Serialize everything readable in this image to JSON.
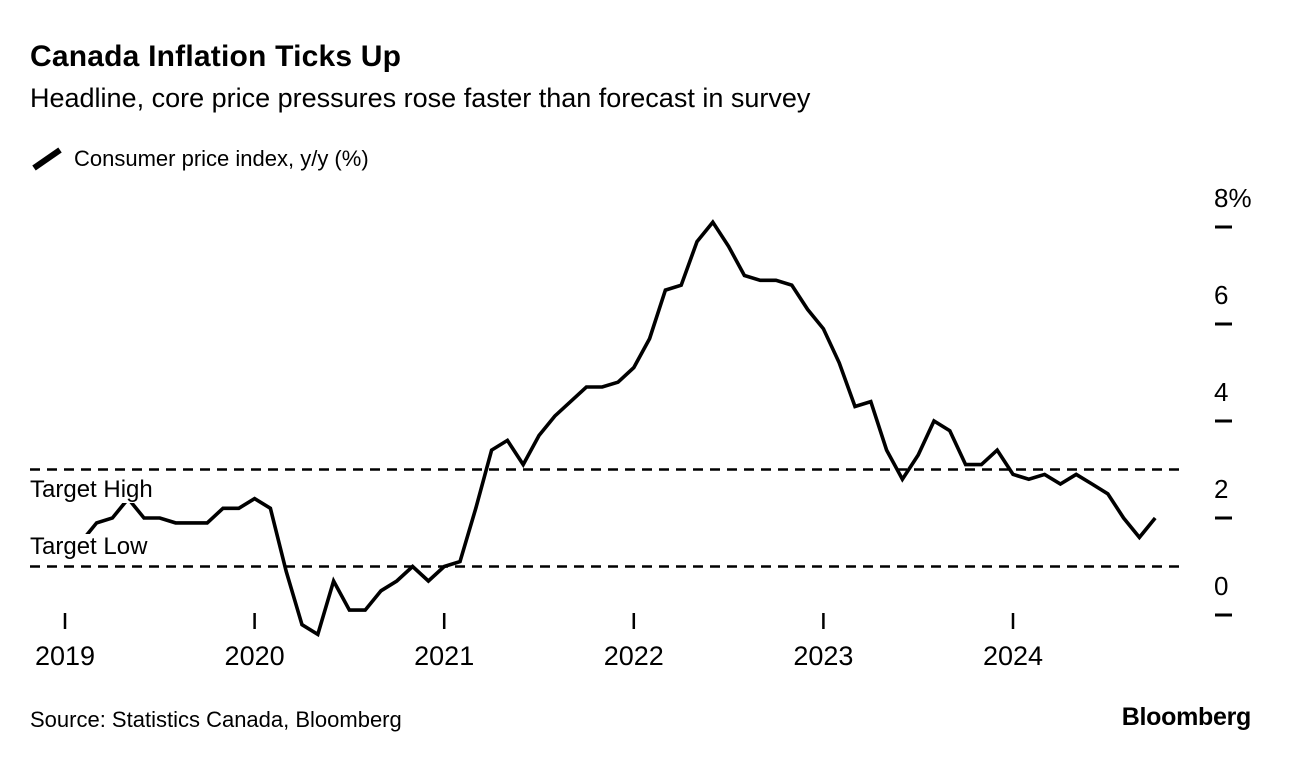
{
  "header": {
    "title": "Canada Inflation Ticks Up",
    "subtitle": "Headline, core price pressures rose faster than forecast in survey"
  },
  "legend": {
    "series_label": "Consumer price index, y/y (%)"
  },
  "chart_data": {
    "type": "line",
    "title": "Canada Inflation Ticks Up",
    "xlabel": "",
    "ylabel": "Consumer price index, y/y (%)",
    "ylim": [
      -0.7,
      8.6
    ],
    "grid": false,
    "legend_position": "top-left",
    "series": [
      {
        "name": "Consumer price index, y/y (%)",
        "start": "2019-01",
        "frequency": "monthly",
        "values": [
          1.4,
          1.5,
          1.9,
          2.0,
          2.4,
          2.0,
          2.0,
          1.9,
          1.9,
          1.9,
          2.2,
          2.2,
          2.4,
          2.2,
          0.9,
          -0.2,
          -0.4,
          0.7,
          0.1,
          0.1,
          0.5,
          0.7,
          1.0,
          0.7,
          1.0,
          1.1,
          2.2,
          3.4,
          3.6,
          3.1,
          3.7,
          4.1,
          4.4,
          4.7,
          4.7,
          4.8,
          5.1,
          5.7,
          6.7,
          6.8,
          7.7,
          8.1,
          7.6,
          7.0,
          6.9,
          6.9,
          6.8,
          6.3,
          5.9,
          5.2,
          4.3,
          4.4,
          3.4,
          2.8,
          3.3,
          4.0,
          3.8,
          3.1,
          3.1,
          3.4,
          2.9,
          2.8,
          2.9,
          2.7,
          2.9,
          2.7,
          2.5,
          2.0,
          1.6,
          2.0
        ]
      }
    ],
    "x_ticks": [
      {
        "label": "2019",
        "month_index": 0
      },
      {
        "label": "2020",
        "month_index": 12
      },
      {
        "label": "2021",
        "month_index": 24
      },
      {
        "label": "2022",
        "month_index": 36
      },
      {
        "label": "2023",
        "month_index": 48
      },
      {
        "label": "2024",
        "month_index": 60
      }
    ],
    "y_ticks": [
      {
        "label": "8%",
        "value": 8
      },
      {
        "label": "6",
        "value": 6
      },
      {
        "label": "4",
        "value": 4
      },
      {
        "label": "2",
        "value": 2
      },
      {
        "label": "0",
        "value": 0
      }
    ],
    "reference_lines": [
      {
        "id": "target-high",
        "label": "Target High",
        "value": 3,
        "style": "dashed",
        "label_side": "below"
      },
      {
        "id": "target-low",
        "label": "Target Low",
        "value": 1,
        "style": "dashed",
        "label_side": "above"
      }
    ]
  },
  "footer": {
    "source": "Source: Statistics Canada, Bloomberg",
    "brand": "Bloomberg"
  },
  "colors": {
    "line": "#000000",
    "background": "#ffffff",
    "text": "#000000"
  }
}
